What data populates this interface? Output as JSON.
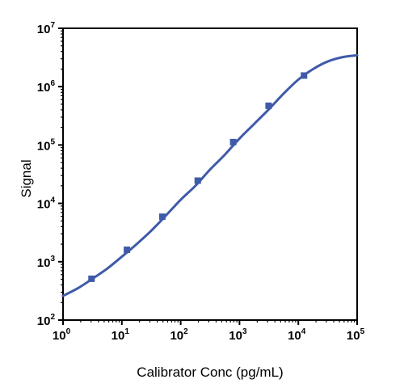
{
  "chart_data": {
    "type": "scatter",
    "title": "",
    "xlabel": "Calibrator Conc (pg/mL)",
    "ylabel": "Signal",
    "x_scale": "log",
    "y_scale": "log",
    "xlim": [
      1,
      100000
    ],
    "ylim": [
      100,
      10000000
    ],
    "grid": false,
    "legend": "none",
    "x_ticks": [
      {
        "base": "10",
        "exp": "0"
      },
      {
        "base": "10",
        "exp": "1"
      },
      {
        "base": "10",
        "exp": "2"
      },
      {
        "base": "10",
        "exp": "3"
      },
      {
        "base": "10",
        "exp": "4"
      },
      {
        "base": "10",
        "exp": "5"
      }
    ],
    "y_ticks": [
      {
        "base": "10",
        "exp": "2"
      },
      {
        "base": "10",
        "exp": "3"
      },
      {
        "base": "10",
        "exp": "4"
      },
      {
        "base": "10",
        "exp": "5"
      },
      {
        "base": "10",
        "exp": "6"
      },
      {
        "base": "10",
        "exp": "7"
      }
    ],
    "series": [
      {
        "type": "scatter",
        "x": [
          3.05,
          12.2,
          48.8,
          195,
          781,
          3125,
          12500
        ],
        "y": [
          510,
          1600,
          5900,
          24500,
          112000,
          470000,
          1550000
        ]
      },
      {
        "type": "line",
        "x": [
          1,
          1.78,
          3.16,
          5.62,
          10,
          17.8,
          31.6,
          56.2,
          100,
          178,
          316,
          562,
          1000,
          1780,
          3160,
          5620,
          10000,
          17800,
          31600,
          56200,
          100000
        ],
        "y": [
          260,
          350,
          510,
          760,
          1220,
          2000,
          3400,
          6200,
          11500,
          20000,
          38000,
          68000,
          129000,
          230000,
          410000,
          760000,
          1320000,
          2000000,
          2700000,
          3200000,
          3450000
        ]
      }
    ],
    "colors": {
      "series": "#3f5aa8",
      "axis": "#000000"
    }
  }
}
